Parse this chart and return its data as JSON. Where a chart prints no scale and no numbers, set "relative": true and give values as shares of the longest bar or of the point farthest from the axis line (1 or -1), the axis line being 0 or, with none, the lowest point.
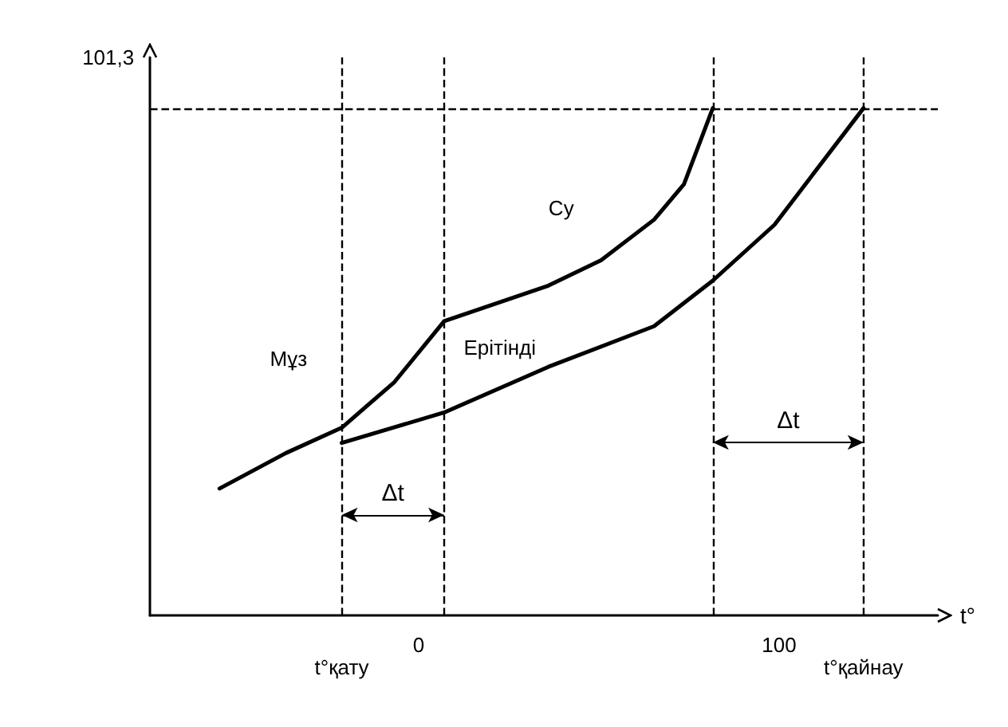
{
  "chart_data": {
    "type": "line",
    "xlabel": "t°",
    "xlim": [
      -74.5,
      144
    ],
    "relative": true,
    "xticks": [
      0,
      100
    ],
    "series": [
      {
        "color": "#000000",
        "x": [
          -55.2,
          -36.8,
          -21.3,
          -6.7,
          7.1,
          36,
          50.6,
          65.3,
          73.6,
          81.6
        ],
        "values": [
          0.25,
          0.32,
          0.37,
          0.46,
          0.58,
          0.65,
          0.7,
          0.78,
          0.85,
          1
        ]
      },
      {
        "color": "#000000",
        "x": [
          -21.3,
          7.1,
          36,
          65.3,
          81.6,
          98.7,
          123.4
        ],
        "values": [
          0.34,
          0.4,
          0.49,
          0.57,
          0.66,
          0.77,
          1
        ]
      }
    ],
    "ref_lines": [
      {
        "axis": "y",
        "value": 1,
        "line_style": "dashed",
        "color": "#000000"
      },
      {
        "axis": "x",
        "value": -21.3,
        "label": "t°қату",
        "line_style": "dashed",
        "color": "#000000"
      },
      {
        "axis": "x",
        "value": 7.1,
        "line_style": "dashed",
        "color": "#000000"
      },
      {
        "axis": "x",
        "value": 81.6,
        "line_style": "dashed",
        "color": "#000000"
      },
      {
        "axis": "x",
        "value": 123.4,
        "label": "t°қайнау",
        "line_style": "dashed",
        "color": "#000000"
      }
    ],
    "annotations": [
      "101,3",
      "Су",
      "Мұз",
      "Ерітінді",
      "Δt",
      "Δt"
    ],
    "grid": false,
    "marker": "none",
    "line_style": "solid"
  }
}
